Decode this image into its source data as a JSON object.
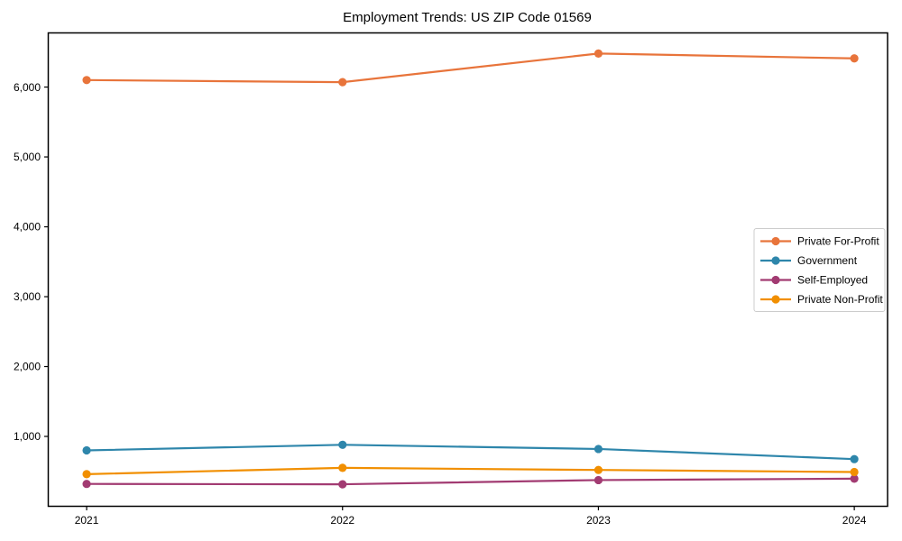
{
  "chart_data": {
    "type": "line",
    "title": "Employment Trends: US ZIP Code 01569",
    "xlabel": "",
    "ylabel": "",
    "x": [
      2021,
      2022,
      2023,
      2024
    ],
    "x_tick_labels": [
      "2021",
      "2022",
      "2023",
      "2024"
    ],
    "y_ticks": [
      1000,
      2000,
      3000,
      4000,
      5000,
      6000
    ],
    "y_tick_labels": [
      "1,000",
      "2,000",
      "3,000",
      "4,000",
      "5,000",
      "6,000"
    ],
    "xlim": [
      2020.85,
      2024.13
    ],
    "ylim": [
      0,
      6775
    ],
    "grid": false,
    "axis_color": "#000000",
    "background_color": "#ffffff",
    "legend": {
      "position": "center-right",
      "border_color": "#cccccc",
      "background": "#ffffff"
    },
    "series": [
      {
        "name": "Private For-Profit",
        "color": "#E8743B",
        "values": [
          6100,
          6070,
          6480,
          6410
        ]
      },
      {
        "name": "Government",
        "color": "#2E86AB",
        "values": [
          800,
          880,
          820,
          675
        ]
      },
      {
        "name": "Self-Employed",
        "color": "#A23B72",
        "values": [
          320,
          315,
          375,
          395
        ]
      },
      {
        "name": "Private Non-Profit",
        "color": "#F18F01",
        "values": [
          460,
          550,
          520,
          490
        ]
      }
    ]
  }
}
